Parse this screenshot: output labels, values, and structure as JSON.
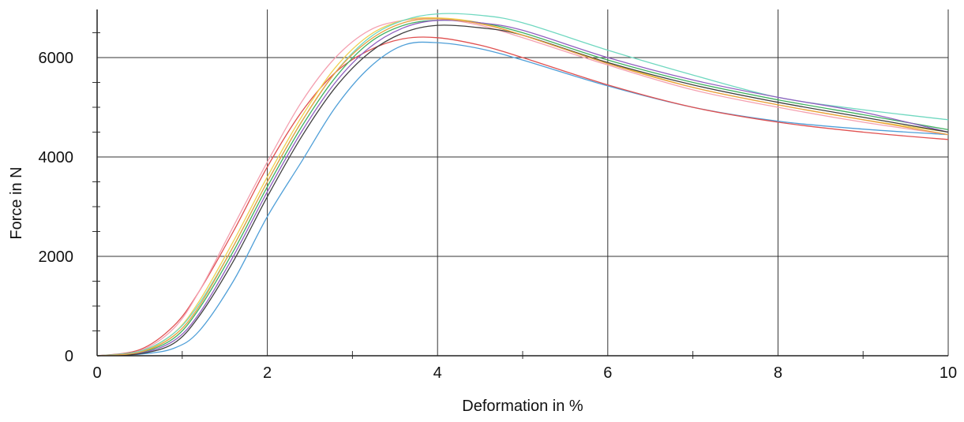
{
  "chart_data": {
    "type": "line",
    "title": "",
    "xlabel": "Deformation in %",
    "ylabel": "Force in N",
    "xlim": [
      0,
      10
    ],
    "ylim": [
      0,
      6800
    ],
    "x_ticks": [
      0,
      2,
      4,
      6,
      8,
      10
    ],
    "x_tick_labels": [
      "0",
      "2",
      "4",
      "6",
      "8",
      "10"
    ],
    "y_ticks": [
      0,
      2000,
      4000,
      6000
    ],
    "y_tick_labels": [
      "0",
      "2000",
      "4000",
      "6000"
    ],
    "grid": true,
    "legend": "none",
    "series": [
      {
        "color": "#4f9fd8",
        "x": [
          0,
          0.5,
          0.9,
          1.2,
          1.6,
          2.0,
          2.4,
          2.8,
          3.2,
          3.6,
          4.0,
          4.5,
          5.0,
          6.0,
          7.0,
          8.0,
          9.0,
          10.0
        ],
        "y": [
          0,
          30,
          150,
          500,
          1500,
          2800,
          3900,
          5000,
          5800,
          6250,
          6300,
          6180,
          5950,
          5430,
          5000,
          4720,
          4560,
          4450
        ]
      },
      {
        "color": "#e05050",
        "x": [
          0,
          0.5,
          0.9,
          1.2,
          1.6,
          2.0,
          2.4,
          2.8,
          3.2,
          3.6,
          4.0,
          4.5,
          5.0,
          6.0,
          7.0,
          8.0,
          9.0,
          10.0
        ],
        "y": [
          0,
          120,
          600,
          1300,
          2500,
          3800,
          4900,
          5700,
          6150,
          6380,
          6400,
          6250,
          6000,
          5450,
          5000,
          4700,
          4500,
          4350
        ]
      },
      {
        "color": "#f4a0b0",
        "x": [
          0,
          0.5,
          0.9,
          1.2,
          1.6,
          2.0,
          2.4,
          2.8,
          3.2,
          3.6,
          4.0,
          4.5,
          5.0,
          6.0,
          7.0,
          8.0,
          9.0,
          10.0
        ],
        "y": [
          0,
          100,
          550,
          1300,
          2600,
          3900,
          5100,
          6000,
          6550,
          6750,
          6780,
          6650,
          6400,
          5850,
          5350,
          5000,
          4700,
          4450
        ]
      },
      {
        "color": "#f0d050",
        "x": [
          0,
          0.5,
          0.9,
          1.2,
          1.6,
          2.0,
          2.4,
          2.8,
          3.2,
          3.6,
          4.0,
          4.5,
          5.0,
          6.0,
          7.0,
          8.0,
          9.0,
          10.0
        ],
        "y": [
          0,
          80,
          450,
          1100,
          2300,
          3600,
          4800,
          5800,
          6450,
          6750,
          6800,
          6700,
          6450,
          5900,
          5400,
          5050,
          4750,
          4500
        ]
      },
      {
        "color": "#40b060",
        "x": [
          0,
          0.5,
          0.9,
          1.2,
          1.6,
          2.0,
          2.4,
          2.8,
          3.2,
          3.6,
          4.0,
          4.5,
          5.0,
          6.0,
          7.0,
          8.0,
          9.0,
          10.0
        ],
        "y": [
          0,
          60,
          350,
          950,
          2100,
          3400,
          4600,
          5600,
          6300,
          6650,
          6750,
          6700,
          6500,
          5950,
          5500,
          5150,
          4850,
          4550
        ]
      },
      {
        "color": "#70d8c0",
        "x": [
          0,
          0.5,
          0.9,
          1.2,
          1.6,
          2.0,
          2.4,
          2.8,
          3.2,
          3.6,
          4.0,
          4.5,
          5.0,
          6.0,
          7.0,
          8.0,
          9.0,
          10.0
        ],
        "y": [
          0,
          90,
          450,
          1050,
          2200,
          3500,
          4700,
          5700,
          6400,
          6750,
          6880,
          6850,
          6700,
          6150,
          5650,
          5200,
          4950,
          4750
        ]
      },
      {
        "color": "#9060c0",
        "x": [
          0,
          0.5,
          0.9,
          1.2,
          1.6,
          2.0,
          2.4,
          2.8,
          3.2,
          3.6,
          4.0,
          4.5,
          5.0,
          6.0,
          7.0,
          8.0,
          9.0,
          10.0
        ],
        "y": [
          0,
          50,
          300,
          850,
          2000,
          3300,
          4500,
          5500,
          6200,
          6600,
          6750,
          6700,
          6550,
          6000,
          5550,
          5200,
          4900,
          4500
        ]
      },
      {
        "color": "#404040",
        "x": [
          0,
          0.5,
          0.9,
          1.2,
          1.6,
          2.0,
          2.4,
          2.8,
          3.2,
          3.6,
          4.0,
          4.5,
          5.0,
          6.0,
          7.0,
          8.0,
          9.0,
          10.0
        ],
        "y": [
          0,
          40,
          250,
          800,
          1900,
          3200,
          4400,
          5400,
          6100,
          6500,
          6650,
          6600,
          6450,
          5900,
          5450,
          5100,
          4800,
          4500
        ]
      },
      {
        "color": "#e8a040",
        "x": [
          0,
          0.5,
          0.9,
          1.2,
          1.6,
          2.0,
          2.4,
          2.8,
          3.2,
          3.6,
          4.0,
          4.5,
          5.0,
          6.0,
          7.0,
          8.0,
          9.0,
          10.0
        ],
        "y": [
          0,
          70,
          400,
          1000,
          2200,
          3500,
          4700,
          5700,
          6350,
          6700,
          6780,
          6680,
          6450,
          5880,
          5400,
          5050,
          4750,
          4450
        ]
      }
    ]
  }
}
